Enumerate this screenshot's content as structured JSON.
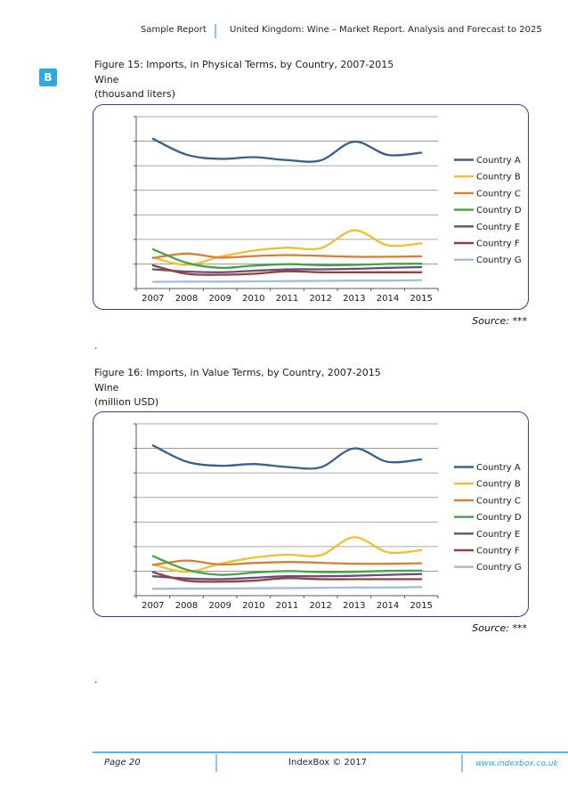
{
  "header": {
    "left_label": "Sample Report",
    "right_label": "United Kingdom: Wine – Market Report. Analysis and Forecast to 2025",
    "logo_letter": "B",
    "logo_color": "#29abe2"
  },
  "figures": [
    {
      "title": "Figure 15: Imports, in Physical Terms, by Country, 2007-2015",
      "subtitle": "Wine",
      "unit_label": "(thousand liters)",
      "source_label": "Source: ***",
      "paragraph_mark": ".",
      "chart_data": {
        "type": "line",
        "smooth": true,
        "x": [
          2007,
          2008,
          2009,
          2010,
          2011,
          2012,
          2013,
          2014,
          2015
        ],
        "ylim": [
          0,
          70
        ],
        "gridline_step": 10,
        "y_axis_labels_visible": false,
        "grid": true,
        "legend_position": "right",
        "series": [
          {
            "name": "Country A",
            "color": "#38618F",
            "values": [
              61,
              54.5,
              52.8,
              53.5,
              52.3,
              52.2,
              59.8,
              54.4,
              55.3
            ]
          },
          {
            "name": "Country B",
            "color": "#F0C02F",
            "values": [
              12.6,
              9.6,
              12.9,
              15.4,
              16.6,
              16.4,
              23.7,
              17.6,
              18.4
            ]
          },
          {
            "name": "Country C",
            "color": "#DC7E30",
            "values": [
              12.4,
              14.2,
              12.6,
              13.2,
              13.6,
              13.3,
              12.9,
              12.9,
              13.1
            ]
          },
          {
            "name": "Country D",
            "color": "#44A344",
            "values": [
              16,
              10.5,
              8.4,
              9.3,
              9.9,
              9.5,
              9.6,
              10,
              10.1
            ]
          },
          {
            "name": "Country E",
            "color": "#62517E",
            "values": [
              7.8,
              6.9,
              6.6,
              7.2,
              7.8,
              7.8,
              8,
              8.4,
              8.7
            ]
          },
          {
            "name": "Country F",
            "color": "#96403C",
            "values": [
              9.4,
              6,
              5.6,
              6,
              7,
              6.6,
              6.6,
              6.6,
              6.6
            ]
          },
          {
            "name": "Country G",
            "color": "#A5BBD6",
            "values": [
              2.7,
              2.8,
              2.8,
              2.9,
              3,
              3.1,
              3.2,
              3.2,
              3.4
            ]
          }
        ]
      }
    },
    {
      "title": "Figure 16: Imports, in Value Terms, by Country, 2007-2015",
      "subtitle": "Wine",
      "unit_label": "(million USD)",
      "source_label": "Source: ***",
      "paragraph_mark": ".",
      "chart_data": {
        "type": "line",
        "smooth": true,
        "x": [
          2007,
          2008,
          2009,
          2010,
          2011,
          2012,
          2013,
          2014,
          2015
        ],
        "ylim": [
          0,
          70
        ],
        "gridline_step": 10,
        "y_axis_labels_visible": false,
        "grid": true,
        "legend_position": "right",
        "series": [
          {
            "name": "Country A",
            "color": "#38618F",
            "values": [
              61.2,
              54.6,
              52.9,
              53.6,
              52.4,
              52.3,
              60,
              54.5,
              55.5
            ]
          },
          {
            "name": "Country B",
            "color": "#F0C02F",
            "values": [
              12.7,
              9.7,
              13,
              15.5,
              16.7,
              16.5,
              23.8,
              17.7,
              18.5
            ]
          },
          {
            "name": "Country C",
            "color": "#DC7E30",
            "values": [
              12.5,
              14.3,
              12.7,
              13.3,
              13.7,
              13.4,
              13,
              13,
              13.2
            ]
          },
          {
            "name": "Country D",
            "color": "#44A344",
            "values": [
              16.1,
              10.6,
              8.5,
              9.4,
              10,
              9.6,
              9.7,
              10.1,
              10.2
            ]
          },
          {
            "name": "Country E",
            "color": "#62517E",
            "values": [
              7.9,
              7,
              6.7,
              7.3,
              7.9,
              7.9,
              8.1,
              8.5,
              8.8
            ]
          },
          {
            "name": "Country F",
            "color": "#96403C",
            "values": [
              9.5,
              6.1,
              5.7,
              6.1,
              7.1,
              6.7,
              6.7,
              6.7,
              6.7
            ]
          },
          {
            "name": "Country G",
            "color": "#A5BBD6",
            "values": [
              2.8,
              2.9,
              2.9,
              3,
              3.1,
              3.2,
              3.3,
              3.3,
              3.5
            ]
          }
        ]
      }
    }
  ],
  "footer": {
    "page_label": "Page 20",
    "center_label": "IndexBox © 2017",
    "website_label": "www.indexbox.co.uk",
    "accent_color": "#56B7E6"
  }
}
